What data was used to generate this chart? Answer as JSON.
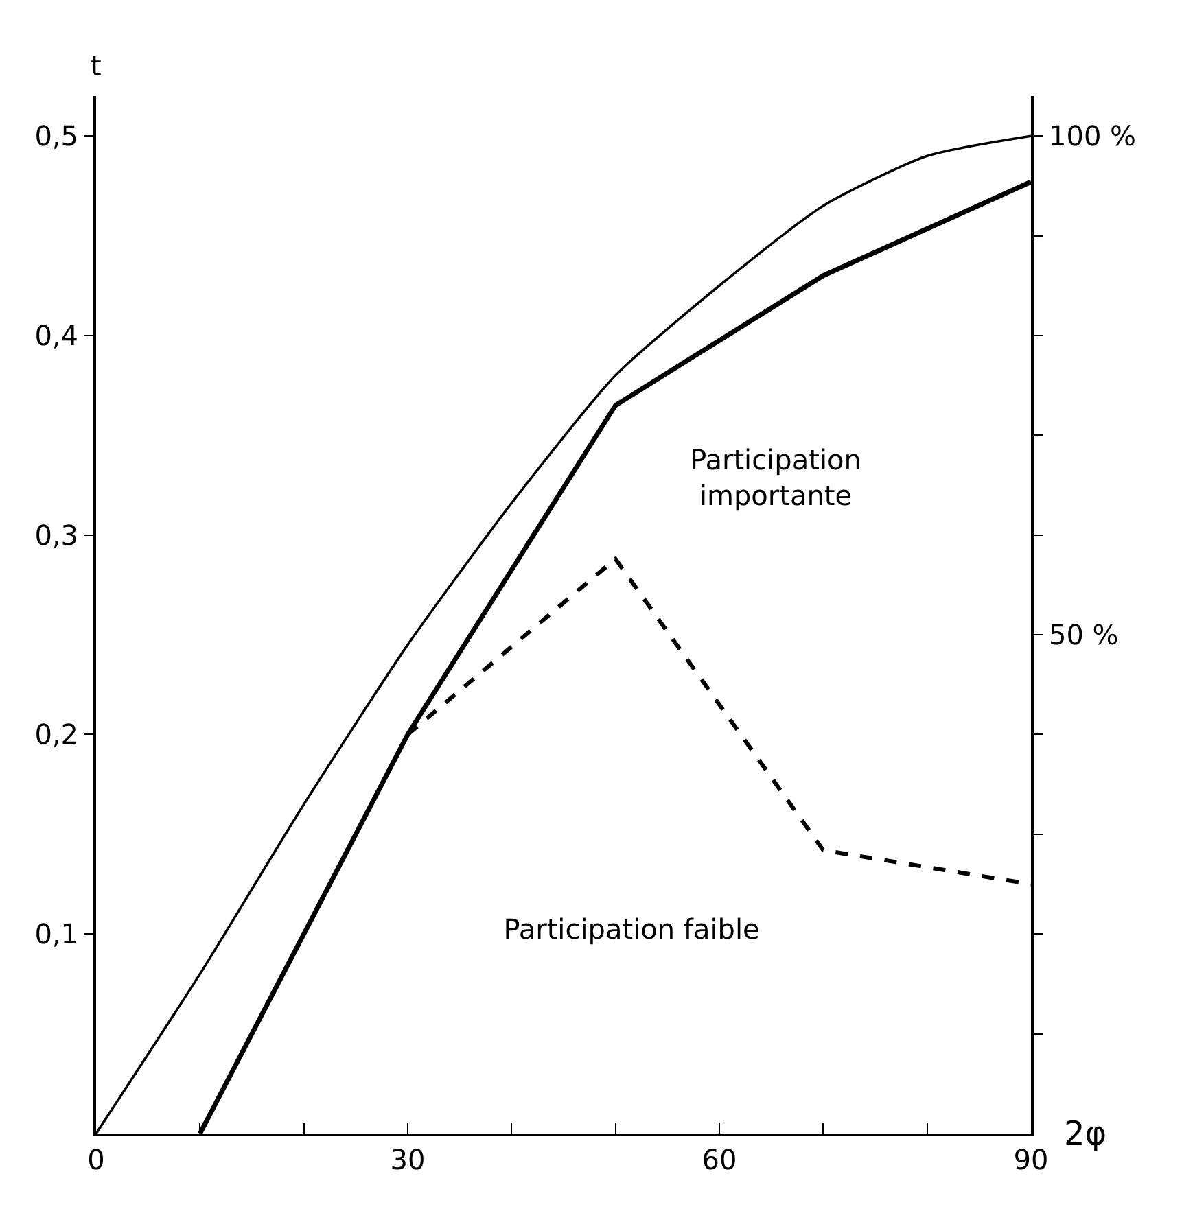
{
  "chart_data": {
    "type": "line",
    "xlabel": "2φ",
    "ylabel": "t",
    "xlim": [
      0,
      90
    ],
    "xticks": [
      0,
      {
        "value": 10,
        "label": null
      },
      {
        "value": 20,
        "label": null
      },
      30,
      {
        "value": 40,
        "label": null
      },
      {
        "value": 50,
        "label": null
      },
      60,
      {
        "value": 70,
        "label": null
      },
      {
        "value": 80,
        "label": null
      },
      90
    ],
    "ylim": [
      0,
      0.52
    ],
    "yticks": [
      {
        "value": 0.1,
        "label": "0,1"
      },
      {
        "value": 0.2,
        "label": "0,2"
      },
      {
        "value": 0.3,
        "label": "0,3"
      },
      {
        "value": 0.4,
        "label": "0,4"
      },
      {
        "value": 0.5,
        "label": "0,5"
      }
    ],
    "y2lim": [
      0,
      104
    ],
    "y2ticks": [
      {
        "value": 10,
        "label": null
      },
      {
        "value": 20,
        "label": null
      },
      {
        "value": 30,
        "label": null
      },
      {
        "value": 40,
        "label": null
      },
      {
        "value": 50,
        "label": "50 %"
      },
      {
        "value": 60,
        "label": null
      },
      {
        "value": 70,
        "label": null
      },
      {
        "value": 80,
        "label": null
      },
      {
        "value": 90,
        "label": null
      },
      {
        "value": 100,
        "label": "100 %"
      }
    ],
    "series": [
      {
        "color": "#000000",
        "line_style": "solid",
        "x": [
          0,
          10,
          20,
          30,
          40,
          50,
          60,
          70,
          80,
          90
        ],
        "values": [
          0,
          0.08,
          0.165,
          0.245,
          0.316,
          0.38,
          0.425,
          0.465,
          0.49,
          0.5
        ]
      },
      {
        "color": "#000000",
        "line_style": "solid",
        "x": [
          10,
          30,
          50,
          70,
          90
        ],
        "values": [
          0,
          0.2,
          0.365,
          0.43,
          0.477
        ]
      },
      {
        "color": "#000000",
        "line_style": "dashed",
        "x": [
          30,
          50,
          70,
          90
        ],
        "values": [
          0.2,
          0.288,
          0.142,
          0.125
        ]
      }
    ],
    "annotations": [
      "Participation importante",
      "Participation faible"
    ],
    "grid": false,
    "marker": "none"
  }
}
